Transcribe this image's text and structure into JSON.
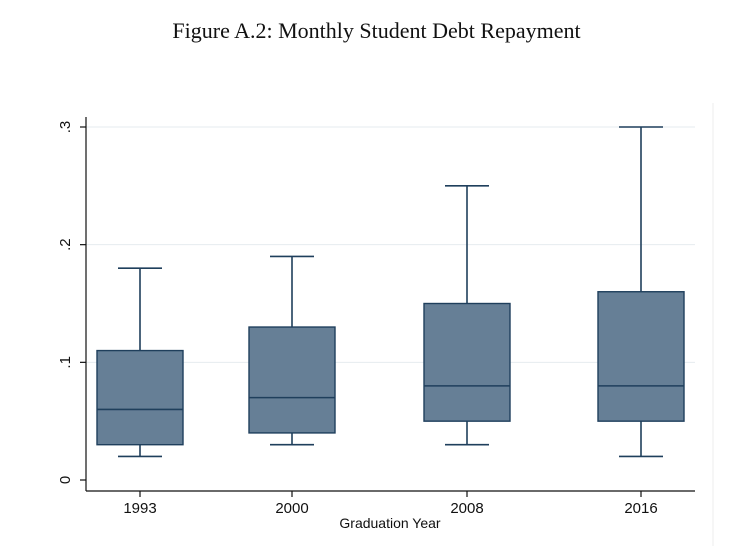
{
  "figure_title": "Figure A.2: Monthly Student Debt Repayment",
  "chart_data": {
    "type": "box",
    "title": "",
    "xlabel": "Graduation Year",
    "ylabel": "",
    "categories": [
      "1993",
      "2000",
      "2008",
      "2016"
    ],
    "ylim": [
      0,
      0.3
    ],
    "yticks": [
      0,
      0.1,
      0.2,
      0.3
    ],
    "ytick_labels": [
      "0",
      ".1",
      ".2",
      ".3"
    ],
    "boxes": [
      {
        "category": "1993",
        "whisker_low": 0.02,
        "q1": 0.03,
        "median": 0.06,
        "q3": 0.11,
        "whisker_high": 0.18
      },
      {
        "category": "2000",
        "whisker_low": 0.03,
        "q1": 0.04,
        "median": 0.07,
        "q3": 0.13,
        "whisker_high": 0.19
      },
      {
        "category": "2008",
        "whisker_low": 0.03,
        "q1": 0.05,
        "median": 0.08,
        "q3": 0.15,
        "whisker_high": 0.25
      },
      {
        "category": "2016",
        "whisker_low": 0.02,
        "q1": 0.05,
        "median": 0.08,
        "q3": 0.16,
        "whisker_high": 0.3
      }
    ],
    "grid": true,
    "colors": {
      "box_fill": "#667f96",
      "box_line": "#1f3f5c",
      "grid": "#e6ebef",
      "axis": "#111111"
    }
  }
}
